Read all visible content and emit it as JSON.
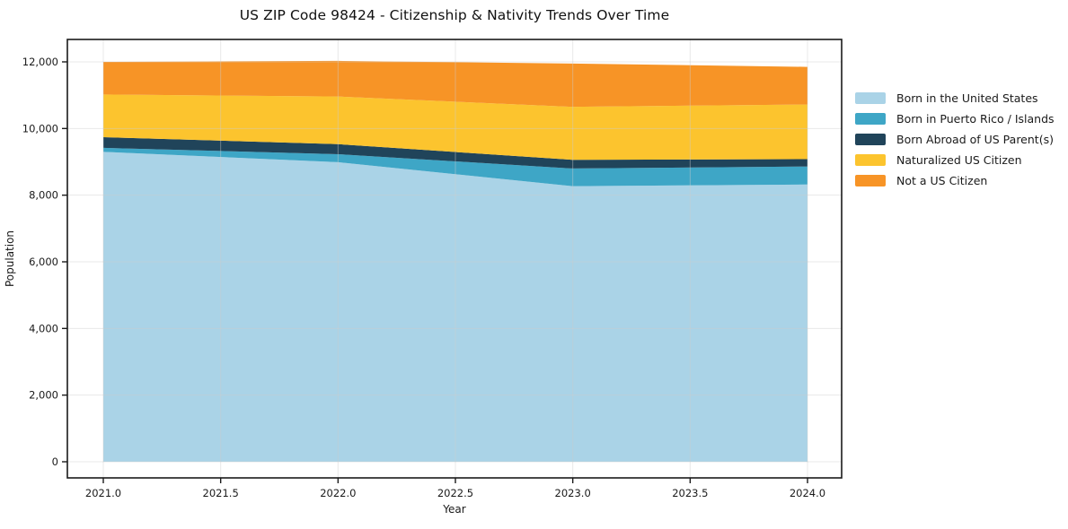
{
  "figure": {
    "title": "US ZIP Code 98424 - Citizenship & Nativity Trends Over Time"
  },
  "chart_data": {
    "type": "area",
    "stacked": true,
    "title": "US ZIP Code 98424 - Citizenship & Nativity Trends Over Time",
    "xlabel": "Year",
    "ylabel": "Population",
    "x": [
      2021,
      2022,
      2023,
      2024
    ],
    "series": [
      {
        "name": "Born in the United States",
        "color": "#aad3e7",
        "values": [
          9300,
          8990,
          8270,
          8320
        ]
      },
      {
        "name": "Born in Puerto Rico / Islands",
        "color": "#3ea6c6",
        "values": [
          120,
          240,
          530,
          540
        ]
      },
      {
        "name": "Born Abroad of US Parent(s)",
        "color": "#20445a",
        "values": [
          320,
          300,
          260,
          220
        ]
      },
      {
        "name": "Naturalized US Citizen",
        "color": "#fcc42e",
        "values": [
          1280,
          1430,
          1590,
          1640
        ]
      },
      {
        "name": "Not a US Citizen",
        "color": "#f79426",
        "values": [
          980,
          1070,
          1300,
          1130
        ]
      }
    ],
    "stacked_totals": [
      12000,
      12030,
      11950,
      11850
    ],
    "x_tick_values": [
      2021.0,
      2021.5,
      2022.0,
      2022.5,
      2023.0,
      2023.5,
      2024.0
    ],
    "x_tick_labels": [
      "2021.0",
      "2021.5",
      "2022.0",
      "2022.5",
      "2023.0",
      "2023.5",
      "2024.0"
    ],
    "y_tick_values": [
      0,
      2000,
      4000,
      6000,
      8000,
      10000,
      12000
    ],
    "y_tick_labels": [
      "0",
      "2,000",
      "4,000",
      "6,000",
      "8,000",
      "10,000",
      "12,000"
    ],
    "ylim": [
      0,
      12000
    ],
    "grid": true,
    "legend_position": "outside-right",
    "spine_color": "#1a1a1a",
    "grid_color": "#cccccc"
  }
}
